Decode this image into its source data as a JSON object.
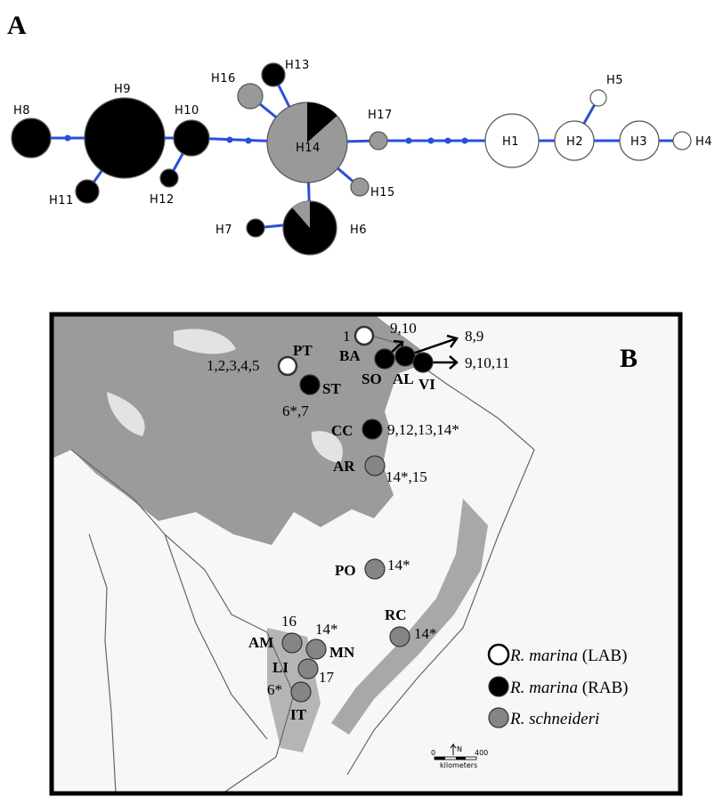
{
  "panels": {
    "a": "A",
    "b": "B"
  },
  "network": {
    "haplotypes": [
      {
        "id": "H1",
        "label": "H1",
        "kind": "white"
      },
      {
        "id": "H2",
        "label": "H2",
        "kind": "white"
      },
      {
        "id": "H3",
        "label": "H3",
        "kind": "white"
      },
      {
        "id": "H4",
        "label": "H4",
        "kind": "white"
      },
      {
        "id": "H5",
        "label": "H5",
        "kind": "white"
      },
      {
        "id": "H6",
        "label": "H6",
        "kind": "black-gray",
        "black_fraction": 0.88
      },
      {
        "id": "H7",
        "label": "H7",
        "kind": "black"
      },
      {
        "id": "H8",
        "label": "H8",
        "kind": "black"
      },
      {
        "id": "H9",
        "label": "H9",
        "kind": "black"
      },
      {
        "id": "H10",
        "label": "H10",
        "kind": "black"
      },
      {
        "id": "H11",
        "label": "H11",
        "kind": "black"
      },
      {
        "id": "H12",
        "label": "H12",
        "kind": "black"
      },
      {
        "id": "H13",
        "label": "H13",
        "kind": "black"
      },
      {
        "id": "H14",
        "label": "H14",
        "kind": "gray-black",
        "black_fraction": 0.13
      },
      {
        "id": "H15",
        "label": "H15",
        "kind": "gray"
      },
      {
        "id": "H16",
        "label": "H16",
        "kind": "gray"
      },
      {
        "id": "H17",
        "label": "H17",
        "kind": "gray"
      }
    ]
  },
  "map": {
    "sites": [
      {
        "code": "PT",
        "haplotypes": "1,2,3,4,5",
        "lineage": "lab"
      },
      {
        "code": "",
        "haplotypes": "1",
        "lineage": "lab"
      },
      {
        "code": "ST",
        "haplotypes": "6*,7",
        "lineage": "rab"
      },
      {
        "code": "BA",
        "haplotypes": "9,10",
        "lineage": "rab"
      },
      {
        "code": "SO",
        "haplotypes": "8,9",
        "lineage": "rab"
      },
      {
        "code": "AL",
        "haplotypes": "",
        "lineage": "rab"
      },
      {
        "code": "VI",
        "haplotypes": "9,10,11",
        "lineage": "rab"
      },
      {
        "code": "CC",
        "haplotypes": "9,12,13,14*",
        "lineage": "rab"
      },
      {
        "code": "AR",
        "haplotypes": "14*,15",
        "lineage": "schneideri"
      },
      {
        "code": "PO",
        "haplotypes": "14*",
        "lineage": "schneideri"
      },
      {
        "code": "RC",
        "haplotypes": "14*",
        "lineage": "schneideri"
      },
      {
        "code": "AM",
        "haplotypes": "16",
        "lineage": "schneideri"
      },
      {
        "code": "MN",
        "haplotypes": "14*",
        "lineage": "schneideri"
      },
      {
        "code": "LI",
        "haplotypes": "17",
        "lineage": "schneideri"
      },
      {
        "code": "IT",
        "haplotypes": "6*",
        "lineage": "schneideri"
      }
    ],
    "legend": [
      {
        "species": "R. marina",
        "group": " (LAB)",
        "color": "#ffffff"
      },
      {
        "species": "R. marina",
        "group": " (RAB)",
        "color": "#000000"
      },
      {
        "species": "R. schneideri",
        "group": "",
        "color": "#8a8a8a"
      }
    ],
    "scale": {
      "zero": "0",
      "value": "400",
      "unit": "kilometers",
      "north": "N"
    }
  }
}
